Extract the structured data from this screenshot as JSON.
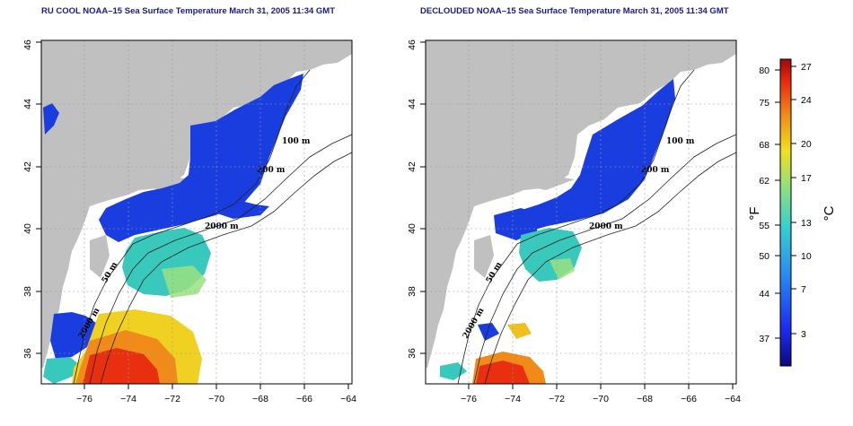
{
  "titles": {
    "left": "RU COOL NOAA–15 Sea Surface Temperature March 31, 2005 11:34 GMT",
    "right": "DECLOUDED NOAA–15 Sea Surface Temperature March 31, 2005 11:34 GMT"
  },
  "axes": {
    "x_ticks": [
      "−76",
      "−74",
      "−72",
      "−70",
      "−68",
      "−66",
      "−64"
    ],
    "y_ticks": [
      "36",
      "38",
      "40",
      "42",
      "44",
      "46"
    ]
  },
  "contour_labels": {
    "left": [
      "100 m",
      "200 m",
      "2000 m",
      "50 m",
      "2000 m"
    ],
    "right": [
      "100 m",
      "200 m",
      "2000 m",
      "50 m",
      "2000 m"
    ]
  },
  "colorbar": {
    "fahrenheit_ticks": [
      "80",
      "75",
      "68",
      "62",
      "55",
      "50",
      "44",
      "37"
    ],
    "celsius_ticks": [
      "27",
      "24",
      "20",
      "17",
      "13",
      "10",
      "7",
      "3"
    ],
    "fahrenheit_unit": "°F",
    "celsius_unit": "°C"
  },
  "colors": {
    "land": "#c0c0c0",
    "cold": "#1a3de0",
    "mid": "#35c8c0",
    "warm": "#ee3a12",
    "title": "#1a1a8c"
  }
}
